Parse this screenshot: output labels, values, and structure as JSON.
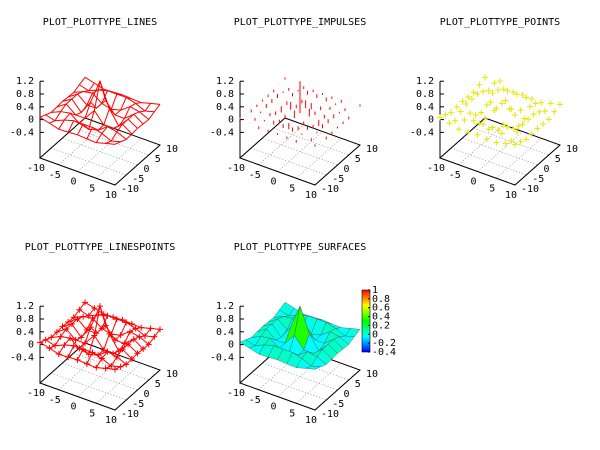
{
  "chart_data": [
    {
      "type": "lines",
      "title": "PLOT_PLOTTYPE_LINES",
      "color": "#ff0000",
      "x": [
        -10,
        -7.5,
        -5,
        -2.5,
        0,
        2.5,
        5,
        7.5,
        10
      ],
      "y": [
        -10,
        -7.5,
        -5,
        -2.5,
        0,
        2.5,
        5,
        7.5,
        10
      ],
      "z": [
        [
          0.071,
          -0.005,
          -0.088,
          -0.075,
          -0.054,
          -0.075,
          -0.088,
          -0.005,
          0.071
        ],
        [
          -0.005,
          -0.087,
          0.044,
          0.126,
          0.125,
          0.126,
          0.044,
          -0.087,
          -0.005
        ],
        [
          -0.088,
          0.044,
          0.1,
          -0.114,
          -0.192,
          -0.114,
          0.1,
          0.044,
          -0.088
        ],
        [
          -0.075,
          0.126,
          -0.114,
          -0.109,
          0.239,
          -0.109,
          -0.114,
          0.126,
          -0.075
        ],
        [
          -0.054,
          0.125,
          -0.192,
          0.239,
          1,
          0.239,
          -0.192,
          0.125,
          -0.054
        ],
        [
          -0.075,
          0.126,
          -0.114,
          -0.109,
          0.239,
          -0.109,
          -0.114,
          0.126,
          -0.075
        ],
        [
          -0.088,
          0.044,
          0.1,
          -0.114,
          -0.192,
          -0.114,
          0.1,
          0.044,
          -0.088
        ],
        [
          -0.005,
          -0.087,
          0.044,
          0.126,
          0.125,
          0.126,
          0.044,
          -0.087,
          -0.005
        ],
        [
          0.071,
          -0.005,
          -0.088,
          -0.075,
          -0.054,
          -0.075,
          -0.088,
          -0.005,
          0.071
        ]
      ],
      "xlim": [
        -10,
        10
      ],
      "ylim": [
        -10,
        10
      ],
      "zlim": [
        -0.4,
        1.2
      ],
      "xticks": [
        -10,
        -5,
        0,
        5,
        10
      ],
      "yticks": [
        -10,
        -5,
        0,
        5,
        10
      ],
      "zticks": [
        -0.4,
        0,
        0.4,
        0.8,
        1.2
      ],
      "grid": true
    },
    {
      "type": "impulses",
      "title": "PLOT_PLOTTYPE_IMPULSES",
      "color": "#ff0000",
      "x": [
        -10,
        -7.5,
        -5,
        -2.5,
        0,
        2.5,
        5,
        7.5,
        10
      ],
      "y": [
        -10,
        -7.5,
        -5,
        -2.5,
        0,
        2.5,
        5,
        7.5,
        10
      ],
      "z": [
        [
          0.071,
          -0.005,
          -0.088,
          -0.075,
          -0.054,
          -0.075,
          -0.088,
          -0.005,
          0.071
        ],
        [
          -0.005,
          -0.087,
          0.044,
          0.126,
          0.125,
          0.126,
          0.044,
          -0.087,
          -0.005
        ],
        [
          -0.088,
          0.044,
          0.1,
          -0.114,
          -0.192,
          -0.114,
          0.1,
          0.044,
          -0.088
        ],
        [
          -0.075,
          0.126,
          -0.114,
          -0.109,
          0.239,
          -0.109,
          -0.114,
          0.126,
          -0.075
        ],
        [
          -0.054,
          0.125,
          -0.192,
          0.239,
          1,
          0.239,
          -0.192,
          0.125,
          -0.054
        ],
        [
          -0.075,
          0.126,
          -0.114,
          -0.109,
          0.239,
          -0.109,
          -0.114,
          0.126,
          -0.075
        ],
        [
          -0.088,
          0.044,
          0.1,
          -0.114,
          -0.192,
          -0.114,
          0.1,
          0.044,
          -0.088
        ],
        [
          -0.005,
          -0.087,
          0.044,
          0.126,
          0.125,
          0.126,
          0.044,
          -0.087,
          -0.005
        ],
        [
          0.071,
          -0.005,
          -0.088,
          -0.075,
          -0.054,
          -0.075,
          -0.088,
          -0.005,
          0.071
        ]
      ],
      "xlim": [
        -10,
        10
      ],
      "ylim": [
        -10,
        10
      ],
      "zlim": [
        -0.4,
        1.2
      ],
      "xticks": [
        -10,
        -5,
        0,
        5,
        10
      ],
      "yticks": [
        -10,
        -5,
        0,
        5,
        10
      ],
      "zticks": [
        -0.4,
        0,
        0.4,
        0.8,
        1.2
      ],
      "grid": true
    },
    {
      "type": "points",
      "title": "PLOT_PLOTTYPE_POINTS",
      "color": "#e6e600",
      "x": [
        -10,
        -7.5,
        -5,
        -2.5,
        0,
        2.5,
        5,
        7.5,
        10
      ],
      "y": [
        -10,
        -7.5,
        -5,
        -2.5,
        0,
        2.5,
        5,
        7.5,
        10
      ],
      "z": [
        [
          0.071,
          -0.005,
          -0.088,
          -0.075,
          -0.054,
          -0.075,
          -0.088,
          -0.005,
          0.071
        ],
        [
          -0.005,
          -0.087,
          0.044,
          0.126,
          0.125,
          0.126,
          0.044,
          -0.087,
          -0.005
        ],
        [
          -0.088,
          0.044,
          0.1,
          -0.114,
          -0.192,
          -0.114,
          0.1,
          0.044,
          -0.088
        ],
        [
          -0.075,
          0.126,
          -0.114,
          -0.109,
          0.239,
          -0.109,
          -0.114,
          0.126,
          -0.075
        ],
        [
          -0.054,
          0.125,
          -0.192,
          0.239,
          1,
          0.239,
          -0.192,
          0.125,
          -0.054
        ],
        [
          -0.075,
          0.126,
          -0.114,
          -0.109,
          0.239,
          -0.109,
          -0.114,
          0.126,
          -0.075
        ],
        [
          -0.088,
          0.044,
          0.1,
          -0.114,
          -0.192,
          -0.114,
          0.1,
          0.044,
          -0.088
        ],
        [
          -0.005,
          -0.087,
          0.044,
          0.126,
          0.125,
          0.126,
          0.044,
          -0.087,
          -0.005
        ],
        [
          0.071,
          -0.005,
          -0.088,
          -0.075,
          -0.054,
          -0.075,
          -0.088,
          -0.005,
          0.071
        ]
      ],
      "xlim": [
        -10,
        10
      ],
      "ylim": [
        -10,
        10
      ],
      "zlim": [
        -0.4,
        1.2
      ],
      "xticks": [
        -10,
        -5,
        0,
        5,
        10
      ],
      "yticks": [
        -10,
        -5,
        0,
        5,
        10
      ],
      "zticks": [
        -0.4,
        0,
        0.4,
        0.8,
        1.2
      ],
      "grid": true
    },
    {
      "type": "linespoints",
      "title": "PLOT_PLOTTYPE_LINESPOINTS",
      "color": "#ff0000",
      "x": [
        -10,
        -7.5,
        -5,
        -2.5,
        0,
        2.5,
        5,
        7.5,
        10
      ],
      "y": [
        -10,
        -7.5,
        -5,
        -2.5,
        0,
        2.5,
        5,
        7.5,
        10
      ],
      "z": [
        [
          0.071,
          -0.005,
          -0.088,
          -0.075,
          -0.054,
          -0.075,
          -0.088,
          -0.005,
          0.071
        ],
        [
          -0.005,
          -0.087,
          0.044,
          0.126,
          0.125,
          0.126,
          0.044,
          -0.087,
          -0.005
        ],
        [
          -0.088,
          0.044,
          0.1,
          -0.114,
          -0.192,
          -0.114,
          0.1,
          0.044,
          -0.088
        ],
        [
          -0.075,
          0.126,
          -0.114,
          -0.109,
          0.239,
          -0.109,
          -0.114,
          0.126,
          -0.075
        ],
        [
          -0.054,
          0.125,
          -0.192,
          0.239,
          1,
          0.239,
          -0.192,
          0.125,
          -0.054
        ],
        [
          -0.075,
          0.126,
          -0.114,
          -0.109,
          0.239,
          -0.109,
          -0.114,
          0.126,
          -0.075
        ],
        [
          -0.088,
          0.044,
          0.1,
          -0.114,
          -0.192,
          -0.114,
          0.1,
          0.044,
          -0.088
        ],
        [
          -0.005,
          -0.087,
          0.044,
          0.126,
          0.125,
          0.126,
          0.044,
          -0.087,
          -0.005
        ],
        [
          0.071,
          -0.005,
          -0.088,
          -0.075,
          -0.054,
          -0.075,
          -0.088,
          -0.005,
          0.071
        ]
      ],
      "xlim": [
        -10,
        10
      ],
      "ylim": [
        -10,
        10
      ],
      "zlim": [
        -0.4,
        1.2
      ],
      "xticks": [
        -10,
        -5,
        0,
        5,
        10
      ],
      "yticks": [
        -10,
        -5,
        0,
        5,
        10
      ],
      "zticks": [
        -0.4,
        0,
        0.4,
        0.8,
        1.2
      ],
      "grid": true
    },
    {
      "type": "surfaces",
      "title": "PLOT_PLOTTYPE_SURFACES",
      "x": [
        -10,
        -7.5,
        -5,
        -2.5,
        0,
        2.5,
        5,
        7.5,
        10
      ],
      "y": [
        -10,
        -7.5,
        -5,
        -2.5,
        0,
        2.5,
        5,
        7.5,
        10
      ],
      "z": [
        [
          0.071,
          -0.005,
          -0.088,
          -0.075,
          -0.054,
          -0.075,
          -0.088,
          -0.005,
          0.071
        ],
        [
          -0.005,
          -0.087,
          0.044,
          0.126,
          0.125,
          0.126,
          0.044,
          -0.087,
          -0.005
        ],
        [
          -0.088,
          0.044,
          0.1,
          -0.114,
          -0.192,
          -0.114,
          0.1,
          0.044,
          -0.088
        ],
        [
          -0.075,
          0.126,
          -0.114,
          -0.109,
          0.239,
          -0.109,
          -0.114,
          0.126,
          -0.075
        ],
        [
          -0.054,
          0.125,
          -0.192,
          0.239,
          1,
          0.239,
          -0.192,
          0.125,
          -0.054
        ],
        [
          -0.075,
          0.126,
          -0.114,
          -0.109,
          0.239,
          -0.109,
          -0.114,
          0.126,
          -0.075
        ],
        [
          -0.088,
          0.044,
          0.1,
          -0.114,
          -0.192,
          -0.114,
          0.1,
          0.044,
          -0.088
        ],
        [
          -0.005,
          -0.087,
          0.044,
          0.126,
          0.125,
          0.126,
          0.044,
          -0.087,
          -0.005
        ],
        [
          0.071,
          -0.005,
          -0.088,
          -0.075,
          -0.054,
          -0.075,
          -0.088,
          -0.005,
          0.071
        ]
      ],
      "xlim": [
        -10,
        10
      ],
      "ylim": [
        -10,
        10
      ],
      "zlim": [
        -0.4,
        1.2
      ],
      "xticks": [
        -10,
        -5,
        0,
        5,
        10
      ],
      "yticks": [
        -10,
        -5,
        0,
        5,
        10
      ],
      "zticks": [
        -0.4,
        0,
        0.4,
        0.8,
        1.2
      ],
      "grid": true,
      "cblim": [
        -0.4,
        1
      ],
      "cbticks": [
        1,
        0.8,
        0.6,
        0.4,
        0.2,
        0,
        -0.2,
        -0.4
      ]
    }
  ]
}
